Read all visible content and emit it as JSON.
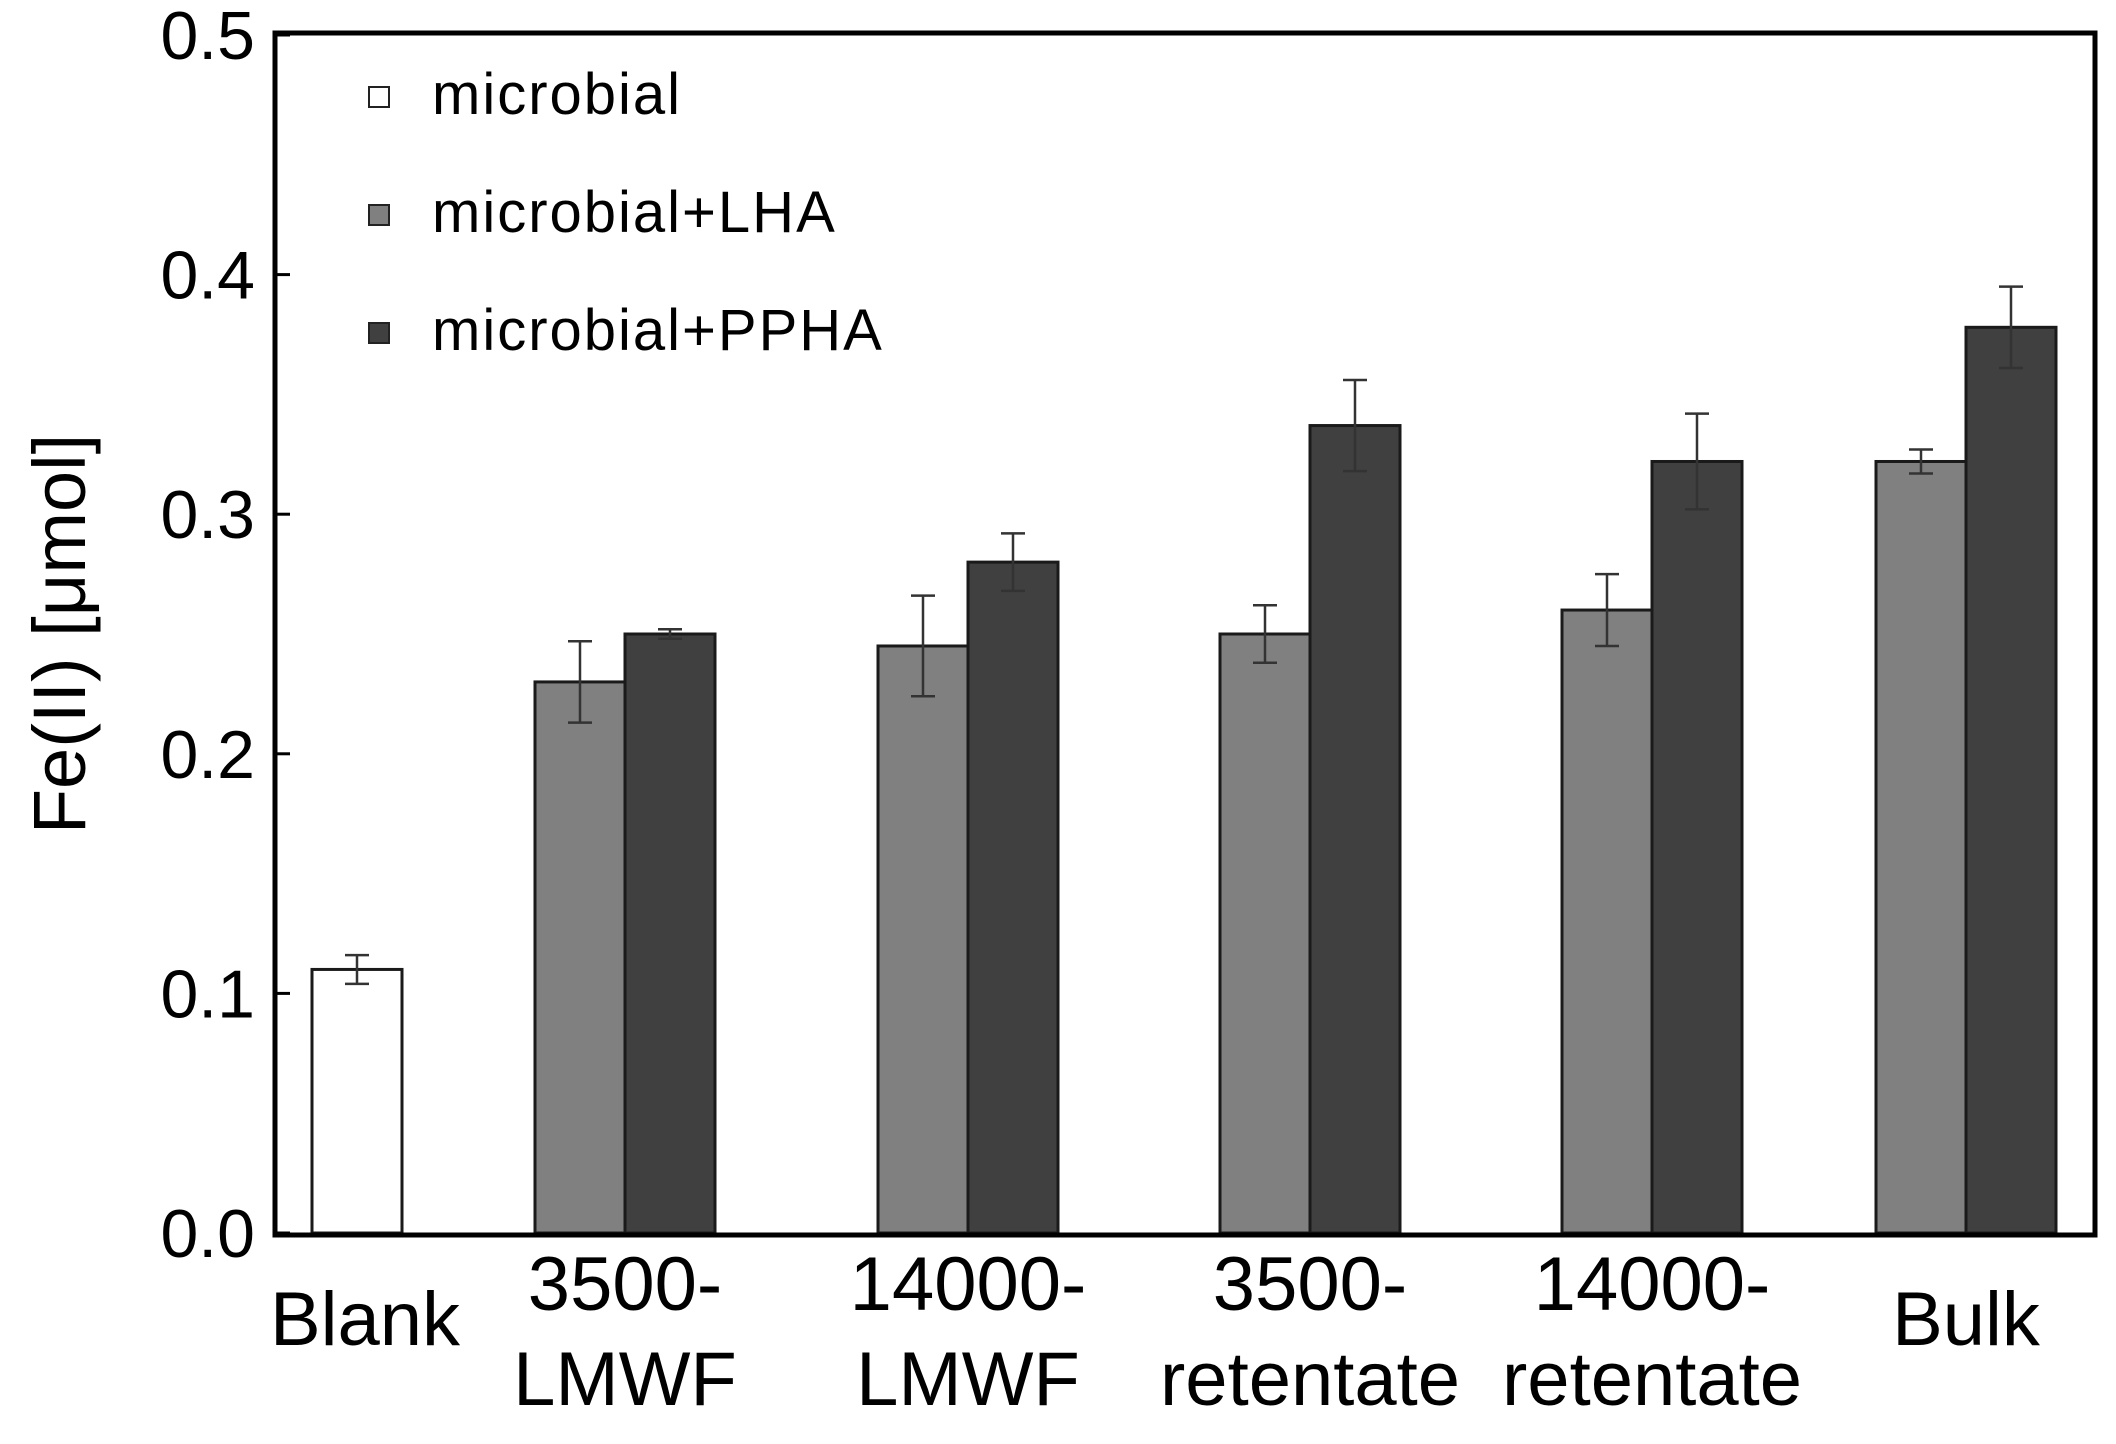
{
  "chart_data": {
    "type": "bar",
    "title": "",
    "xlabel": "",
    "ylabel": "Fe(II) [μmol]",
    "ylim": [
      0,
      0.5
    ],
    "yticks": [
      "0.0",
      "0.1",
      "0.2",
      "0.3",
      "0.4",
      "0.5"
    ],
    "grid": false,
    "legend_position": "top-left",
    "categories": [
      [
        "Blank"
      ],
      [
        "3500-",
        "LMWF"
      ],
      [
        "14000-",
        "LMWF"
      ],
      [
        "3500-",
        "retentate"
      ],
      [
        "14000-",
        "retentate"
      ],
      [
        "Bulk"
      ]
    ],
    "series": [
      {
        "name": "microbial",
        "color": "#ffffff",
        "values": [
          0.11,
          null,
          null,
          null,
          null,
          null
        ],
        "errors": [
          0.006,
          null,
          null,
          null,
          null,
          null
        ]
      },
      {
        "name": "microbial+LHA",
        "color": "#808080",
        "values": [
          null,
          0.23,
          0.245,
          0.25,
          0.26,
          0.322
        ],
        "errors": [
          null,
          0.017,
          0.021,
          0.012,
          0.015,
          0.005
        ]
      },
      {
        "name": "microbial+PPHA",
        "color": "#404040",
        "values": [
          null,
          0.25,
          0.28,
          0.337,
          0.322,
          0.378
        ],
        "errors": [
          null,
          0.002,
          0.012,
          0.019,
          0.02,
          0.017
        ]
      }
    ]
  }
}
